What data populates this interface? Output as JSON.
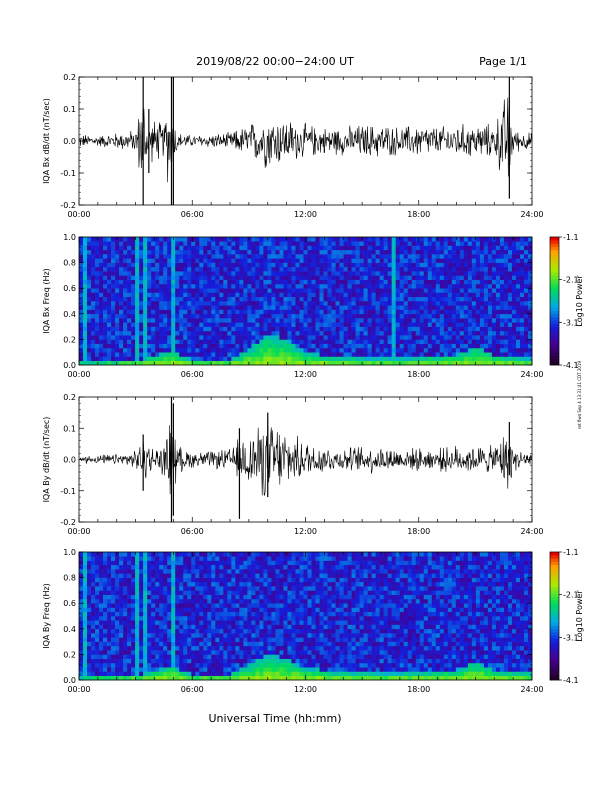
{
  "header": {
    "title": "2019/08/22  00:00−24:00 UT",
    "page": "Page 1/1"
  },
  "side_note": "ret flwd Sep 4 13:31:41 CDT 2019",
  "colorbar": {
    "label": "Log10 Power",
    "ticks": [
      "-1.1",
      "-2.1",
      "-3.1",
      "-4.1"
    ],
    "range": [
      -4.1,
      -1.1
    ]
  },
  "chart_data": [
    {
      "type": "line",
      "name": "IQA Bx dB/dt",
      "ylabel": "IQA Bx dB/dt (nT/sec)",
      "ylim": [
        -0.2,
        0.2
      ],
      "yticks": [
        "0.2",
        "0.1",
        "0.0",
        "-0.1",
        "-0.2"
      ],
      "xlim": [
        0,
        24
      ],
      "xticks": [
        "00:00",
        "06:00",
        "12:00",
        "18:00",
        "24:00"
      ],
      "envelope": {
        "hours": [
          0,
          1,
          2,
          3,
          3.4,
          3.6,
          4,
          4.5,
          4.8,
          5,
          5.3,
          6,
          7,
          8,
          9,
          9.5,
          10,
          10.5,
          11,
          11.5,
          12,
          13,
          14,
          15,
          16,
          17,
          18,
          19,
          20,
          21,
          22,
          22.8,
          23,
          24
        ],
        "amplitude": [
          0.025,
          0.02,
          0.03,
          0.04,
          0.2,
          0.06,
          0.08,
          0.06,
          0.2,
          0.08,
          0.03,
          0.02,
          0.025,
          0.03,
          0.06,
          0.08,
          0.1,
          0.09,
          0.08,
          0.07,
          0.06,
          0.05,
          0.05,
          0.06,
          0.06,
          0.05,
          0.06,
          0.05,
          0.06,
          0.06,
          0.06,
          0.2,
          0.04,
          0.03
        ]
      },
      "spikes": [
        {
          "hour": 3.4,
          "min": -0.2,
          "max": 0.2
        },
        {
          "hour": 3.7,
          "min": -0.1,
          "max": 0.1
        },
        {
          "hour": 4.9,
          "min": -0.2,
          "max": 0.2
        },
        {
          "hour": 5.0,
          "min": -0.2,
          "max": 0.2
        },
        {
          "hour": 22.8,
          "min": -0.18,
          "max": 0.2
        }
      ]
    },
    {
      "type": "heatmap",
      "name": "IQA Bx Freq",
      "ylabel": "IQA Bx Freq (Hz)",
      "ylim": [
        0.0,
        1.0
      ],
      "yticks": [
        "1.0",
        "0.8",
        "0.6",
        "0.4",
        "0.2",
        "0.0"
      ],
      "xlim": [
        0,
        24
      ],
      "xticks": [
        "00:00",
        "06:00",
        "12:00",
        "18:00",
        "24:00"
      ],
      "background_log_power": -3.5,
      "low_freq_activity": {
        "hours": [
          0,
          2,
          3.5,
          4.9,
          6,
          8,
          9,
          10,
          11,
          12,
          14,
          16,
          18,
          20,
          21,
          22,
          24
        ],
        "top_hz": [
          0.02,
          0.03,
          0.05,
          0.12,
          0.04,
          0.05,
          0.12,
          0.25,
          0.2,
          0.1,
          0.06,
          0.05,
          0.06,
          0.08,
          0.15,
          0.08,
          0.05
        ]
      },
      "vertical_streaks_hours": [
        0.3,
        3.1,
        3.5,
        4.9,
        16.7
      ]
    },
    {
      "type": "line",
      "name": "IQA By dB/dt",
      "ylabel": "IQA By dB/dt (nT/sec)",
      "ylim": [
        -0.2,
        0.2
      ],
      "yticks": [
        "0.2",
        "0.1",
        "0.0",
        "-0.1",
        "-0.2"
      ],
      "xlim": [
        0,
        24
      ],
      "xticks": [
        "00:00",
        "06:00",
        "12:00",
        "18:00",
        "24:00"
      ],
      "envelope": {
        "hours": [
          0,
          1,
          2,
          3,
          3.4,
          4,
          4.6,
          4.9,
          5.2,
          6,
          7,
          8,
          8.5,
          9,
          9.5,
          10,
          10.5,
          11,
          11.5,
          12,
          13,
          14,
          15,
          16,
          17,
          18,
          19,
          20,
          21,
          22,
          22.8,
          23,
          24
        ],
        "amplitude": [
          0.015,
          0.015,
          0.02,
          0.03,
          0.08,
          0.04,
          0.06,
          0.2,
          0.05,
          0.03,
          0.03,
          0.04,
          0.08,
          0.1,
          0.12,
          0.15,
          0.13,
          0.1,
          0.08,
          0.07,
          0.05,
          0.04,
          0.05,
          0.05,
          0.04,
          0.04,
          0.04,
          0.05,
          0.05,
          0.05,
          0.12,
          0.04,
          0.03
        ]
      },
      "spikes": [
        {
          "hour": 3.4,
          "min": -0.1,
          "max": 0.08
        },
        {
          "hour": 4.9,
          "min": -0.2,
          "max": 0.2
        },
        {
          "hour": 5.0,
          "min": -0.18,
          "max": 0.18
        },
        {
          "hour": 8.5,
          "min": -0.19,
          "max": 0.1
        },
        {
          "hour": 10.0,
          "min": -0.12,
          "max": 0.15
        },
        {
          "hour": 22.8,
          "min": -0.05,
          "max": 0.12
        }
      ]
    },
    {
      "type": "heatmap",
      "name": "IQA By Freq",
      "ylabel": "IQA By Freq (Hz)",
      "ylim": [
        0.0,
        1.0
      ],
      "yticks": [
        "1.0",
        "0.8",
        "0.6",
        "0.4",
        "0.2",
        "0.0"
      ],
      "xlim": [
        0,
        24
      ],
      "xticks": [
        "00:00",
        "06:00",
        "12:00",
        "18:00",
        "24:00"
      ],
      "background_log_power": -3.5,
      "low_freq_activity": {
        "hours": [
          0,
          2,
          3.5,
          4.9,
          6,
          8,
          9,
          10,
          11,
          12,
          14,
          16,
          18,
          20,
          21,
          22,
          24
        ],
        "top_hz": [
          0.02,
          0.03,
          0.05,
          0.12,
          0.04,
          0.05,
          0.12,
          0.2,
          0.17,
          0.1,
          0.06,
          0.05,
          0.06,
          0.08,
          0.15,
          0.08,
          0.05
        ]
      },
      "vertical_streaks_hours": [
        0.3,
        3.1,
        3.5,
        4.9
      ]
    }
  ],
  "xlabel": "Universal Time (hh:mm)"
}
